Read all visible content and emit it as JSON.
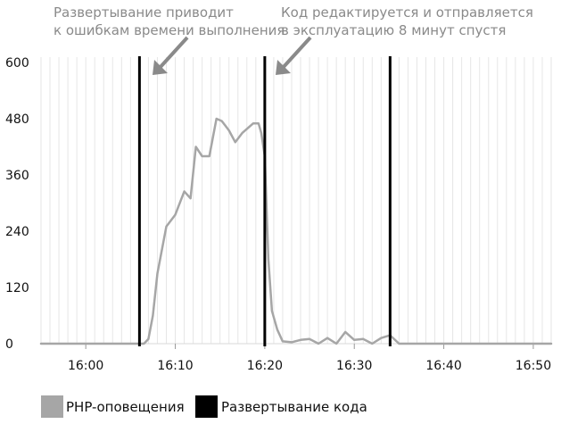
{
  "chart_data": {
    "type": "line",
    "x_unit": "time (HH:MM)",
    "x_range": [
      "15:55",
      "16:52"
    ],
    "ylim": [
      0,
      600
    ],
    "yticks": [
      0,
      120,
      240,
      360,
      480,
      600
    ],
    "ytick_labels": [
      "0",
      "120",
      "240",
      "360",
      "480",
      "600"
    ],
    "xticks": [
      "16:00",
      "16:10",
      "16:20",
      "16:30",
      "16:40",
      "16:50"
    ],
    "grid": "vertical minor lines (1-minute spacing), horizontal baseline",
    "series": [
      {
        "name": "PHP-оповещения",
        "color": "#a6a6a6",
        "points": [
          [
            "15:55",
            0
          ],
          [
            "16:06",
            0
          ],
          [
            "16:06.5",
            0
          ],
          [
            "16:07",
            10
          ],
          [
            "16:07.5",
            60
          ],
          [
            "16:08",
            150
          ],
          [
            "16:08.5",
            200
          ],
          [
            "16:09",
            250
          ],
          [
            "16:10",
            275
          ],
          [
            "16:11",
            325
          ],
          [
            "16:11.7",
            310
          ],
          [
            "16:12.3",
            420
          ],
          [
            "16:13",
            400
          ],
          [
            "16:13.8",
            400
          ],
          [
            "16:14.6",
            480
          ],
          [
            "16:15.2",
            475
          ],
          [
            "16:16",
            455
          ],
          [
            "16:16.7",
            430
          ],
          [
            "16:17.5",
            450
          ],
          [
            "16:18.7",
            470
          ],
          [
            "16:19.3",
            470
          ],
          [
            "16:19.6",
            450
          ],
          [
            "16:20",
            400
          ],
          [
            "16:20.4",
            180
          ],
          [
            "16:20.8",
            70
          ],
          [
            "16:21.4",
            30
          ],
          [
            "16:22",
            5
          ],
          [
            "16:23",
            3
          ],
          [
            "16:24",
            8
          ],
          [
            "16:25",
            10
          ],
          [
            "16:26",
            0
          ],
          [
            "16:27",
            12
          ],
          [
            "16:28",
            0
          ],
          [
            "16:29",
            25
          ],
          [
            "16:30",
            8
          ],
          [
            "16:31",
            10
          ],
          [
            "16:32",
            0
          ],
          [
            "16:33",
            12
          ],
          [
            "16:34",
            18
          ],
          [
            "16:35",
            0
          ],
          [
            "16:52",
            0
          ]
        ]
      },
      {
        "name": "Развертывание кода",
        "color": "#000000",
        "type": "vertical-markers",
        "x": [
          "16:06",
          "16:20",
          "16:34"
        ]
      }
    ],
    "annotations": [
      {
        "id": "annotation-1",
        "text": [
          "Развертывание приводит",
          "к ошибкам времени выполнения"
        ],
        "color": "#8a8a8a"
      },
      {
        "id": "annotation-2",
        "text": [
          "Код редактируется и отправляется",
          "в эксплуатацию 8 минут спустя"
        ],
        "color": "#8a8a8a"
      }
    ],
    "legend": {
      "position": "bottom-left",
      "items": [
        {
          "label": "PHP-оповещения",
          "color": "#a6a6a6"
        },
        {
          "label": "Развертывание кода",
          "color": "#000000"
        }
      ]
    }
  }
}
